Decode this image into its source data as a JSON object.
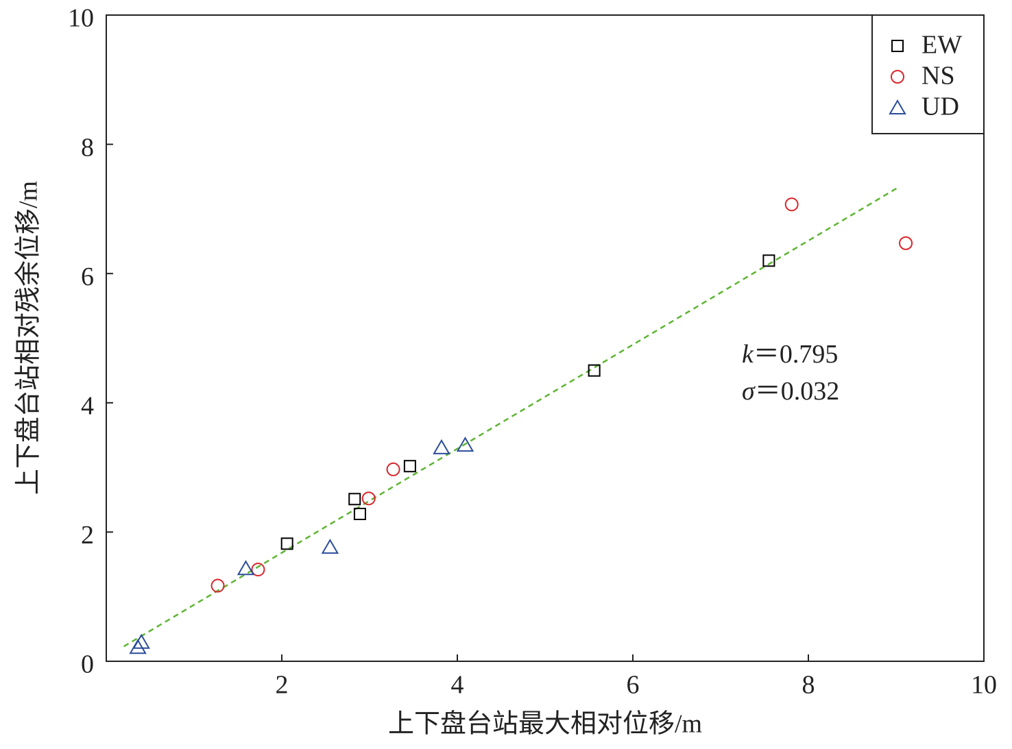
{
  "chart_data": {
    "type": "scatter",
    "xlabel": "上下盘台站最大相对位移/m",
    "ylabel": "上下盘台站相对残余位移/m",
    "xlim": [
      0,
      10
    ],
    "xticks": [
      2,
      4,
      6,
      8,
      10
    ],
    "ylim": [
      0,
      10
    ],
    "yticks": [
      0,
      2,
      4,
      6,
      8,
      10
    ],
    "legend": "upper right",
    "series": [
      {
        "name": "EW",
        "marker": "square",
        "color": "#000000",
        "x": [
          2.06,
          2.83,
          2.89,
          3.46,
          5.56,
          7.55
        ],
        "values": [
          1.82,
          2.51,
          2.28,
          3.02,
          4.5,
          6.2
        ]
      },
      {
        "name": "NS",
        "marker": "circle",
        "color": "#d9262c",
        "x": [
          1.27,
          1.73,
          2.99,
          3.27,
          7.81,
          9.11
        ],
        "values": [
          1.17,
          1.42,
          2.52,
          2.97,
          7.07,
          6.47
        ]
      },
      {
        "name": "UD",
        "marker": "triangle",
        "color": "#2b4c9b",
        "x": [
          0.36,
          0.4,
          1.59,
          2.55,
          3.82,
          4.09
        ],
        "values": [
          0.22,
          0.3,
          1.44,
          1.77,
          3.31,
          3.35
        ]
      }
    ],
    "fit_line": {
      "color": "#5cb531",
      "x": [
        0.2,
        9.02
      ],
      "values": [
        0.23,
        7.33
      ]
    },
    "annotations": [
      {
        "symbol": "k",
        "text": "＝0.795"
      },
      {
        "symbol": "σ",
        "text": "＝0.032"
      }
    ]
  }
}
